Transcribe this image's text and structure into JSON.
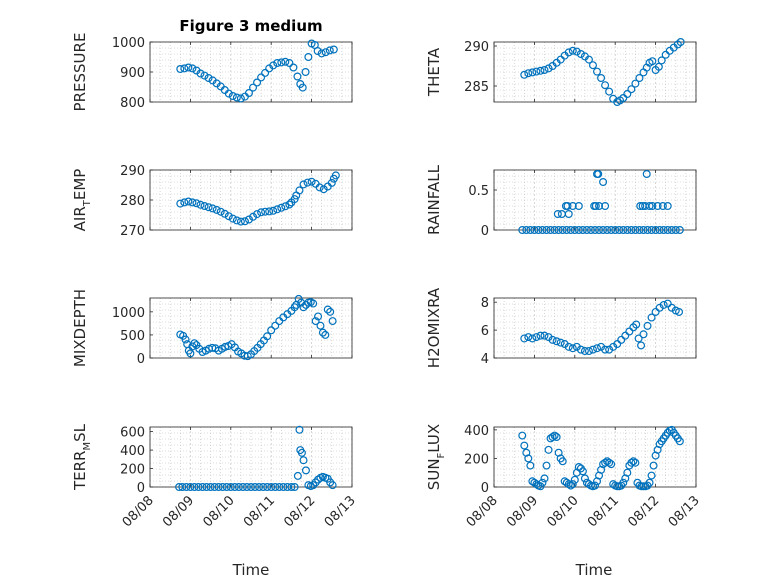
{
  "figure": {
    "title": "Figure 3 medium",
    "xlabel": "Time"
  },
  "colors": {
    "marker": "#0072BD",
    "axis": "#262626",
    "grid": "#bdbdbd",
    "background": "#ffffff"
  },
  "chart_data": [
    {
      "id": "pressure",
      "type": "scatter",
      "ylabel_main": "PRESSURE",
      "ylabel_sub": "",
      "title": "Figure 3 medium",
      "grid": true,
      "xlim": [
        "08/08",
        "08/13"
      ],
      "ylim": [
        800,
        1000
      ],
      "yticks": [
        800,
        900,
        1000
      ],
      "yticklabels": [
        "800",
        "900",
        "1000"
      ],
      "x": [
        8.75,
        8.85,
        8.95,
        9.05,
        9.15,
        9.25,
        9.35,
        9.45,
        9.55,
        9.65,
        9.75,
        9.85,
        9.95,
        10.05,
        10.15,
        10.25,
        10.35,
        10.45,
        10.55,
        10.65,
        10.75,
        10.85,
        10.95,
        11.05,
        11.15,
        11.25,
        11.35,
        11.45,
        11.55,
        11.65,
        11.72,
        11.78,
        11.85,
        11.92,
        12.0,
        12.08,
        12.15,
        12.25,
        12.35,
        12.45,
        12.55
      ],
      "y": [
        910,
        912,
        915,
        912,
        905,
        895,
        888,
        880,
        872,
        862,
        852,
        840,
        828,
        820,
        815,
        812,
        818,
        830,
        848,
        865,
        882,
        897,
        912,
        922,
        930,
        932,
        934,
        930,
        915,
        885,
        860,
        848,
        900,
        950,
        995,
        990,
        970,
        962,
        966,
        972,
        975
      ]
    },
    {
      "id": "theta",
      "type": "scatter",
      "ylabel_main": "THETA",
      "ylabel_sub": "",
      "grid": true,
      "xlim": [
        "08/08",
        "08/13"
      ],
      "ylim": [
        283,
        290.5
      ],
      "yticks": [
        285,
        290
      ],
      "yticklabels": [
        "285",
        "290"
      ],
      "x": [
        8.75,
        8.85,
        8.95,
        9.05,
        9.15,
        9.25,
        9.35,
        9.45,
        9.55,
        9.65,
        9.75,
        9.85,
        9.95,
        10.05,
        10.15,
        10.25,
        10.35,
        10.45,
        10.55,
        10.65,
        10.75,
        10.85,
        10.95,
        11.05,
        11.12,
        11.2,
        11.3,
        11.4,
        11.5,
        11.6,
        11.7,
        11.78,
        11.85,
        11.92,
        12.0,
        12.08,
        12.15,
        12.25,
        12.35,
        12.45,
        12.55,
        12.62
      ],
      "y": [
        286.4,
        286.6,
        286.7,
        286.8,
        286.9,
        287.0,
        287.2,
        287.5,
        287.9,
        288.3,
        288.8,
        289.2,
        289.4,
        289.3,
        289.0,
        288.7,
        288.3,
        287.6,
        286.8,
        286.0,
        285.1,
        284.3,
        283.4,
        283.0,
        283.2,
        283.5,
        284.0,
        284.6,
        285.3,
        286.0,
        286.7,
        287.3,
        287.9,
        288.1,
        287.0,
        287.4,
        288.2,
        288.9,
        289.4,
        289.8,
        290.2,
        290.5
      ]
    },
    {
      "id": "air_temp",
      "type": "scatter",
      "ylabel_main": "AIR",
      "ylabel_sub": "T",
      "ylabel_tail": "EMP",
      "grid": true,
      "xlim": [
        "08/08",
        "08/13"
      ],
      "ylim": [
        270,
        290
      ],
      "yticks": [
        270,
        280,
        290
      ],
      "yticklabels": [
        "270",
        "280",
        "290"
      ],
      "x": [
        8.75,
        8.85,
        8.95,
        9.05,
        9.15,
        9.25,
        9.35,
        9.45,
        9.55,
        9.65,
        9.75,
        9.85,
        9.95,
        10.05,
        10.15,
        10.25,
        10.35,
        10.45,
        10.55,
        10.65,
        10.75,
        10.85,
        10.95,
        11.05,
        11.15,
        11.25,
        11.35,
        11.45,
        11.5,
        11.58,
        11.62,
        11.7,
        11.8,
        11.9,
        12.0,
        12.1,
        12.2,
        12.3,
        12.4,
        12.5,
        12.55,
        12.6
      ],
      "y": [
        278.8,
        279.2,
        279.5,
        279.2,
        278.9,
        278.4,
        278.0,
        277.6,
        277.2,
        276.7,
        276.1,
        275.4,
        274.6,
        273.8,
        273.2,
        272.8,
        272.9,
        273.5,
        274.4,
        275.3,
        275.9,
        276.1,
        276.2,
        276.4,
        276.9,
        277.4,
        277.9,
        278.5,
        279.2,
        280.3,
        281.5,
        283.2,
        285.2,
        285.8,
        286.1,
        285.4,
        284.2,
        283.6,
        284.5,
        285.7,
        287.1,
        288.2
      ]
    },
    {
      "id": "rainfall",
      "type": "scatter",
      "ylabel_main": "RAINFALL",
      "ylabel_sub": "",
      "grid": true,
      "xlim": [
        "08/08",
        "08/13"
      ],
      "ylim": [
        0,
        0.75
      ],
      "yticks": [
        0,
        0.5
      ],
      "yticklabels": [
        "0",
        "0.5"
      ],
      "x": [
        8.7,
        8.8,
        8.9,
        9.0,
        9.1,
        9.2,
        9.3,
        9.4,
        9.5,
        9.6,
        9.7,
        9.8,
        9.9,
        10.0,
        10.1,
        10.2,
        10.3,
        10.4,
        10.5,
        10.6,
        10.7,
        10.8,
        10.9,
        11.0,
        11.1,
        11.2,
        11.3,
        11.4,
        11.5,
        11.6,
        11.7,
        11.8,
        11.9,
        12.0,
        12.1,
        12.2,
        12.3,
        12.4,
        12.5,
        12.6,
        9.58,
        9.68,
        9.78,
        9.82,
        9.85,
        9.95,
        10.1,
        10.48,
        10.52,
        10.55,
        10.58,
        10.6,
        10.7,
        10.75,
        11.62,
        11.68,
        11.74,
        11.78,
        11.85,
        11.92,
        12.05,
        12.18,
        12.3
      ],
      "y": [
        0,
        0,
        0,
        0,
        0,
        0,
        0,
        0,
        0,
        0,
        0,
        0,
        0,
        0,
        0,
        0,
        0,
        0,
        0,
        0,
        0,
        0,
        0,
        0,
        0,
        0,
        0,
        0,
        0,
        0,
        0,
        0,
        0,
        0,
        0,
        0,
        0,
        0,
        0,
        0,
        0.2,
        0.2,
        0.3,
        0.3,
        0.2,
        0.3,
        0.3,
        0.3,
        0.3,
        0.7,
        0.7,
        0.3,
        0.6,
        0.3,
        0.3,
        0.3,
        0.3,
        0.7,
        0.3,
        0.3,
        0.3,
        0.3,
        0.3
      ]
    },
    {
      "id": "mixdepth",
      "type": "scatter",
      "ylabel_main": "MIXDEPTH",
      "ylabel_sub": "",
      "grid": true,
      "xlim": [
        "08/08",
        "08/13"
      ],
      "ylim": [
        0,
        1300
      ],
      "yticks": [
        0,
        500,
        1000
      ],
      "yticklabels": [
        "0",
        "500",
        "1000"
      ],
      "x": [
        8.75,
        8.82,
        8.88,
        8.92,
        8.96,
        9.0,
        9.05,
        9.1,
        9.15,
        9.22,
        9.3,
        9.38,
        9.46,
        9.54,
        9.62,
        9.7,
        9.78,
        9.86,
        9.94,
        10.02,
        10.1,
        10.18,
        10.26,
        10.34,
        10.42,
        10.5,
        10.58,
        10.66,
        10.74,
        10.82,
        10.9,
        11.0,
        11.1,
        11.2,
        11.3,
        11.4,
        11.5,
        11.58,
        11.62,
        11.68,
        11.74,
        11.8,
        11.86,
        11.92,
        11.98,
        12.04,
        12.1,
        12.16,
        12.22,
        12.28,
        12.34,
        12.4,
        12.46,
        12.52
      ],
      "y": [
        510,
        480,
        400,
        300,
        160,
        100,
        250,
        320,
        280,
        200,
        130,
        160,
        200,
        220,
        210,
        160,
        200,
        240,
        260,
        300,
        230,
        140,
        100,
        50,
        40,
        80,
        150,
        220,
        300,
        380,
        470,
        600,
        700,
        800,
        880,
        950,
        1020,
        1100,
        1150,
        1280,
        1200,
        1100,
        1150,
        1200,
        1210,
        1180,
        800,
        900,
        700,
        550,
        500,
        1050,
        1000,
        800
      ]
    },
    {
      "id": "h2omixra",
      "type": "scatter",
      "ylabel_main": "H2OMIXRA",
      "ylabel_sub": "",
      "grid": true,
      "xlim": [
        "08/08",
        "08/13"
      ],
      "ylim": [
        4,
        8.3
      ],
      "yticks": [
        4,
        6,
        8
      ],
      "yticklabels": [
        "4",
        "6",
        "8"
      ],
      "x": [
        8.75,
        8.85,
        8.95,
        9.05,
        9.15,
        9.25,
        9.35,
        9.45,
        9.55,
        9.65,
        9.75,
        9.85,
        9.95,
        10.05,
        10.15,
        10.25,
        10.35,
        10.45,
        10.55,
        10.65,
        10.75,
        10.85,
        10.95,
        11.05,
        11.15,
        11.25,
        11.35,
        11.45,
        11.52,
        11.58,
        11.64,
        11.7,
        11.8,
        11.9,
        12.0,
        12.1,
        12.2,
        12.3,
        12.4,
        12.5,
        12.58
      ],
      "y": [
        5.4,
        5.5,
        5.4,
        5.5,
        5.6,
        5.6,
        5.5,
        5.3,
        5.2,
        5.1,
        5.0,
        4.8,
        4.7,
        4.8,
        4.6,
        4.5,
        4.5,
        4.6,
        4.7,
        4.8,
        4.6,
        4.6,
        4.8,
        5.0,
        5.3,
        5.6,
        5.9,
        6.2,
        6.4,
        5.4,
        4.9,
        5.7,
        6.3,
        6.9,
        7.3,
        7.6,
        7.8,
        7.9,
        7.6,
        7.4,
        7.3
      ]
    },
    {
      "id": "terr_msl",
      "type": "scatter",
      "ylabel_main": "TERR",
      "ylabel_sub": "M",
      "ylabel_tail": "SL",
      "grid": true,
      "xlim": [
        "08/08",
        "08/13"
      ],
      "ylim": [
        0,
        650
      ],
      "yticks": [
        0,
        200,
        400,
        600
      ],
      "yticklabels": [
        "0",
        "200",
        "400",
        "600"
      ],
      "x": [
        8.72,
        8.8,
        8.9,
        9.0,
        9.1,
        9.2,
        9.3,
        9.4,
        9.5,
        9.6,
        9.7,
        9.8,
        9.9,
        10.0,
        10.1,
        10.2,
        10.3,
        10.4,
        10.5,
        10.6,
        10.7,
        10.8,
        10.9,
        11.0,
        11.1,
        11.2,
        11.3,
        11.4,
        11.5,
        11.58,
        11.66,
        11.7,
        11.72,
        11.76,
        11.8,
        11.86,
        11.92,
        11.98,
        12.04,
        12.1,
        12.16,
        12.22,
        12.28,
        12.34,
        12.4,
        12.46,
        12.52
      ],
      "y": [
        0,
        0,
        0,
        0,
        0,
        0,
        0,
        0,
        0,
        0,
        0,
        0,
        0,
        0,
        0,
        0,
        0,
        0,
        0,
        0,
        0,
        0,
        0,
        0,
        0,
        0,
        0,
        0,
        0,
        0,
        120,
        620,
        400,
        370,
        290,
        180,
        20,
        10,
        20,
        50,
        80,
        100,
        110,
        100,
        90,
        50,
        20
      ]
    },
    {
      "id": "sun_flux",
      "type": "scatter",
      "ylabel_main": "SUN",
      "ylabel_sub": "F",
      "ylabel_tail": "LUX",
      "grid": true,
      "xlim": [
        "08/08",
        "08/13"
      ],
      "ylim": [
        0,
        420
      ],
      "yticks": [
        0,
        200,
        400
      ],
      "yticklabels": [
        "0",
        "200",
        "400"
      ],
      "xticks": [
        "08/08",
        "08/09",
        "08/10",
        "08/11",
        "08/12",
        "08/13"
      ],
      "x": [
        8.7,
        8.75,
        8.8,
        8.85,
        8.9,
        8.95,
        9.0,
        9.05,
        9.1,
        9.15,
        9.2,
        9.25,
        9.3,
        9.35,
        9.4,
        9.45,
        9.5,
        9.55,
        9.6,
        9.65,
        9.7,
        9.75,
        9.8,
        9.85,
        9.9,
        9.95,
        10.0,
        10.05,
        10.1,
        10.15,
        10.2,
        10.25,
        10.3,
        10.35,
        10.4,
        10.45,
        10.5,
        10.55,
        10.6,
        10.65,
        10.7,
        10.75,
        10.8,
        10.85,
        10.9,
        10.95,
        11.0,
        11.05,
        11.1,
        11.15,
        11.2,
        11.25,
        11.3,
        11.35,
        11.4,
        11.45,
        11.5,
        11.55,
        11.6,
        11.65,
        11.7,
        11.75,
        11.8,
        11.85,
        11.9,
        11.95,
        12.0,
        12.05,
        12.1,
        12.15,
        12.2,
        12.25,
        12.3,
        12.35,
        12.4,
        12.45,
        12.5,
        12.55,
        12.6
      ],
      "y": [
        360,
        290,
        240,
        200,
        150,
        40,
        30,
        20,
        10,
        5,
        30,
        60,
        150,
        260,
        340,
        350,
        360,
        350,
        240,
        200,
        180,
        40,
        30,
        20,
        10,
        20,
        50,
        100,
        140,
        130,
        110,
        60,
        30,
        20,
        10,
        5,
        10,
        40,
        80,
        120,
        160,
        170,
        180,
        170,
        160,
        20,
        10,
        5,
        5,
        10,
        30,
        60,
        100,
        150,
        170,
        180,
        170,
        30,
        10,
        5,
        5,
        5,
        10,
        30,
        80,
        150,
        220,
        260,
        300,
        320,
        340,
        360,
        380,
        395,
        400,
        380,
        360,
        340,
        320
      ]
    }
  ]
}
